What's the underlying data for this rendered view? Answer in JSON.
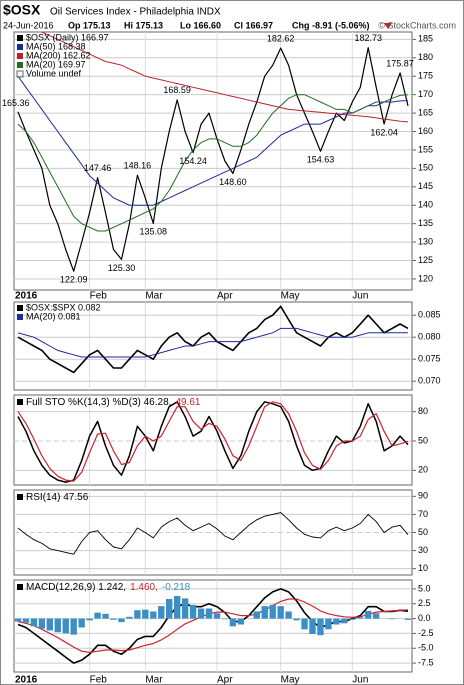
{
  "header": {
    "symbol": "$OSX",
    "name": "Oil Services Index - Philadelphia INDX",
    "date": "24-Jun-2016",
    "open": "Op 175.13",
    "high": "Hi 175.13",
    "low": "Lo 166.60",
    "close": "Cl 166.97",
    "change": "Chg -8.91 (-5.06%)",
    "watermark": "© StockCharts.com"
  },
  "chart_data": [
    {
      "type": "line",
      "legend": "stacked",
      "notes": [
        "Volume undef"
      ],
      "categories": [
        "2016",
        null,
        null,
        null,
        null,
        null,
        null,
        null,
        null,
        "Feb",
        null,
        null,
        null,
        null,
        null,
        null,
        "Mar",
        null,
        null,
        null,
        null,
        null,
        null,
        null,
        null,
        "Apr",
        null,
        null,
        null,
        null,
        null,
        null,
        null,
        "May",
        null,
        null,
        null,
        null,
        null,
        null,
        null,
        null,
        "Jun",
        null,
        null,
        null,
        null,
        null,
        null,
        null
      ],
      "ylim": [
        117,
        187
      ],
      "yticks": [
        120,
        125,
        130,
        135,
        140,
        145,
        150,
        155,
        160,
        165,
        170,
        175,
        180,
        185
      ],
      "grid": true,
      "series": [
        {
          "name": "$OSX (Daily) 166.97",
          "color": "#000000",
          "width": 1.2,
          "values": [
            165.36,
            160,
            155,
            150,
            140,
            135,
            128,
            122.09,
            130,
            138,
            147.46,
            138,
            128,
            125.3,
            135,
            148.16,
            142,
            135.08,
            150,
            160,
            168.59,
            160,
            154.24,
            162,
            165,
            158,
            152,
            148.6,
            155,
            162,
            168,
            175,
            178,
            182.62,
            178,
            170,
            165,
            160,
            154.63,
            160,
            165,
            163,
            168,
            172,
            182.73,
            172,
            162.04,
            170,
            175.87,
            166.97
          ],
          "value_labels": [
            "165.36",
            null,
            null,
            null,
            null,
            null,
            null,
            "122.09",
            null,
            null,
            "147.46",
            null,
            null,
            "125.30",
            null,
            "148.16",
            null,
            "135.08",
            null,
            null,
            "168.59",
            null,
            "154.24",
            null,
            null,
            null,
            null,
            "148.60",
            null,
            null,
            null,
            null,
            null,
            "182.62",
            null,
            null,
            null,
            null,
            "154.63",
            null,
            null,
            null,
            null,
            null,
            "182.73",
            null,
            "162.04",
            null,
            "175.87",
            null
          ]
        },
        {
          "name": "MA(50) 168.38",
          "color": "#1f2a9a",
          "width": 1,
          "values": [
            175,
            172,
            169,
            166,
            163,
            160,
            157,
            154,
            151,
            148,
            146,
            144,
            142,
            141,
            140,
            140,
            140,
            140,
            141,
            142,
            143,
            144,
            145,
            146,
            147,
            148,
            149,
            150,
            151,
            152,
            153,
            155,
            157,
            159,
            160,
            161,
            162,
            162,
            162,
            163,
            164,
            165,
            165,
            166,
            167,
            167,
            168,
            168,
            168.3,
            168.38
          ]
        },
        {
          "name": "MA(200) 162.62",
          "color": "#c0202e",
          "width": 1,
          "values": [
            190,
            189,
            188,
            187,
            186,
            185,
            184,
            183,
            182,
            181,
            180,
            179,
            178.5,
            178,
            177,
            176,
            175,
            174.5,
            174,
            173.5,
            173,
            172.5,
            172,
            171.5,
            171,
            170.5,
            170,
            169.5,
            169,
            168.5,
            168,
            167.5,
            167,
            166.5,
            166,
            165.8,
            165.6,
            165.4,
            165.2,
            165,
            164.8,
            164.6,
            164.4,
            164.2,
            164,
            163.7,
            163.4,
            163.1,
            162.8,
            162.62
          ]
        },
        {
          "name": "MA(20) 169.97",
          "color": "#1f6e1f",
          "width": 1,
          "values": [
            162,
            160,
            157,
            153,
            149,
            145,
            141,
            137,
            135,
            134,
            133,
            133,
            134,
            135,
            136,
            137,
            138,
            139,
            141,
            144,
            148,
            152,
            155,
            157,
            158,
            158,
            157,
            156,
            156,
            157,
            159,
            162,
            165,
            167,
            169,
            170,
            170,
            169,
            168,
            167,
            166,
            166,
            165,
            166,
            167,
            168,
            168,
            169,
            169.8,
            169.97
          ]
        }
      ]
    },
    {
      "type": "line",
      "legend": "stacked",
      "ylim": [
        0.068,
        0.088
      ],
      "yticks": [
        {
          "value": 0.07,
          "label": "0.070"
        },
        0.075,
        {
          "value": 0.08,
          "label": "0.080"
        },
        0.085
      ],
      "grid": true,
      "series": [
        {
          "name": "$OSX:$SPX 0.082",
          "color": "#000000",
          "width": 1.6,
          "values": [
            0.08,
            0.079,
            0.078,
            0.077,
            0.075,
            0.074,
            0.073,
            0.072,
            0.074,
            0.076,
            0.077,
            0.075,
            0.073,
            0.073,
            0.075,
            0.077,
            0.076,
            0.075,
            0.078,
            0.08,
            0.081,
            0.079,
            0.078,
            0.08,
            0.081,
            0.079,
            0.078,
            0.077,
            0.079,
            0.081,
            0.082,
            0.084,
            0.085,
            0.087,
            0.084,
            0.081,
            0.08,
            0.079,
            0.078,
            0.08,
            0.081,
            0.08,
            0.081,
            0.083,
            0.085,
            0.083,
            0.081,
            0.082,
            0.083,
            0.082
          ]
        },
        {
          "name": "MA(20) 0.081",
          "color": "#1f2a9a",
          "width": 1,
          "values": [
            0.081,
            0.0805,
            0.08,
            0.079,
            0.078,
            0.077,
            0.0765,
            0.076,
            0.0755,
            0.0755,
            0.0755,
            0.0755,
            0.0755,
            0.0755,
            0.0755,
            0.0755,
            0.0755,
            0.076,
            0.0765,
            0.077,
            0.0775,
            0.078,
            0.078,
            0.0785,
            0.079,
            0.079,
            0.079,
            0.079,
            0.079,
            0.0795,
            0.08,
            0.0805,
            0.081,
            0.082,
            0.082,
            0.082,
            0.0815,
            0.081,
            0.0805,
            0.08,
            0.08,
            0.08,
            0.08,
            0.0805,
            0.081,
            0.081,
            0.081,
            0.081,
            0.081,
            0.081
          ]
        }
      ]
    },
    {
      "type": "line",
      "legend": "inline",
      "ylim": [
        5,
        97
      ],
      "yticks": [
        20,
        50,
        80
      ],
      "grid": true,
      "series": [
        {
          "name": "Full STO %K(14,3) %D(3) 46.28,",
          "color": "#000000",
          "width": 1.5,
          "values": [
            75,
            60,
            40,
            25,
            15,
            10,
            8,
            10,
            30,
            55,
            70,
            45,
            25,
            15,
            35,
            65,
            55,
            40,
            65,
            85,
            90,
            75,
            55,
            60,
            75,
            60,
            40,
            22,
            35,
            60,
            80,
            90,
            88,
            85,
            70,
            45,
            25,
            20,
            22,
            40,
            55,
            48,
            50,
            65,
            88,
            70,
            40,
            45,
            55,
            46.28
          ]
        },
        {
          "name": "49.61",
          "color": "#d0202e",
          "width": 1.2,
          "values": [
            80,
            68,
            52,
            35,
            22,
            14,
            10,
            9,
            18,
            38,
            57,
            58,
            40,
            26,
            28,
            45,
            55,
            50,
            55,
            70,
            85,
            85,
            70,
            62,
            68,
            65,
            52,
            35,
            30,
            45,
            65,
            85,
            90,
            88,
            78,
            60,
            38,
            25,
            21,
            30,
            45,
            50,
            50,
            55,
            72,
            78,
            60,
            45,
            47,
            49.61
          ]
        }
      ]
    },
    {
      "type": "line",
      "legend": "inline",
      "ylim": [
        3,
        97
      ],
      "yticks": [
        10,
        30,
        50,
        70,
        90
      ],
      "grid": true,
      "series": [
        {
          "name": "RSI(14) 47.56",
          "color": "#000000",
          "width": 0.9,
          "values": [
            55,
            48,
            42,
            38,
            32,
            30,
            28,
            26,
            40,
            50,
            52,
            42,
            34,
            32,
            42,
            55,
            50,
            44,
            56,
            62,
            66,
            58,
            52,
            56,
            60,
            54,
            46,
            42,
            50,
            58,
            64,
            68,
            70,
            72,
            64,
            55,
            48,
            45,
            44,
            52,
            56,
            52,
            55,
            60,
            70,
            62,
            50,
            56,
            58,
            47.56
          ]
        }
      ]
    },
    {
      "type": "line",
      "legend": "inline",
      "ylim": [
        -9,
        6.5
      ],
      "yticks": [
        {
          "value": 5,
          "label": "5.0"
        },
        2.5,
        {
          "value": 0,
          "label": "0.0"
        },
        -2.5,
        {
          "value": -5,
          "label": "-5.0"
        },
        -7.5
      ],
      "grid": true,
      "series": [
        {
          "name": "MACD(12,26,9) 1.242,",
          "color": "#000000",
          "width": 1.6,
          "values": [
            -1,
            -1.5,
            -2.5,
            -3.5,
            -4.5,
            -5.5,
            -6.5,
            -7.5,
            -7,
            -6,
            -4.5,
            -4.5,
            -5.5,
            -6,
            -5,
            -3.5,
            -3,
            -3,
            -1.5,
            0.5,
            2,
            2.5,
            2,
            2,
            2.5,
            2,
            1,
            -0.5,
            -0.5,
            0.5,
            2,
            3.5,
            4.5,
            5,
            4.5,
            3,
            1,
            -0.5,
            -1.5,
            -1,
            -0.5,
            -0.5,
            0,
            0.5,
            2,
            2,
            1.2,
            1.2,
            1.4,
            1.242
          ]
        },
        {
          "name": "1.460,",
          "color": "#d0202e",
          "width": 1.2,
          "values": [
            -0.5,
            -0.8,
            -1.2,
            -1.8,
            -2.5,
            -3.2,
            -4,
            -4.8,
            -5.5,
            -5.7,
            -5.5,
            -5.3,
            -5.3,
            -5.4,
            -5.3,
            -4.9,
            -4.5,
            -4.2,
            -3.6,
            -2.8,
            -1.8,
            -0.9,
            -0.3,
            0.3,
            0.8,
            1.1,
            1.1,
            0.8,
            0.5,
            0.5,
            0.8,
            1.4,
            2.2,
            2.9,
            3.3,
            3.3,
            2.8,
            2.1,
            1.3,
            0.8,
            0.5,
            0.3,
            0.2,
            0.3,
            0.7,
            1.1,
            1.2,
            1.3,
            1.4,
            1.46
          ]
        },
        {
          "name": "-0.218",
          "color": "#3a8fc6",
          "style": "histogram",
          "values": [
            -0.5,
            -0.7,
            -1.3,
            -1.7,
            -2,
            -2.3,
            -2.5,
            -2.7,
            -1.5,
            -0.3,
            1,
            0.8,
            -0.2,
            -0.6,
            0.3,
            1.4,
            1.5,
            1.2,
            2.1,
            3.3,
            3.8,
            3.4,
            2.3,
            1.7,
            1.7,
            0.9,
            -0.1,
            -1.3,
            -1,
            0,
            1.2,
            2.1,
            2.3,
            2.1,
            1.2,
            -0.3,
            -1.8,
            -2.6,
            -2.8,
            -1.8,
            -1,
            -0.8,
            -0.2,
            0.2,
            1.3,
            0.9,
            0,
            -0.1,
            0,
            -0.218
          ]
        }
      ]
    }
  ]
}
